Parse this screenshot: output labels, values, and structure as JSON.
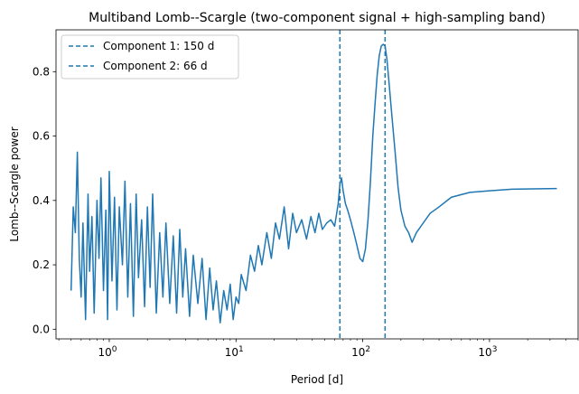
{
  "chart_data": {
    "type": "line",
    "title": "Multiband Lomb--Scargle (two-component signal + high-sampling band)",
    "xlabel": "Period [d]",
    "ylabel": "Lomb--Scargle power",
    "x_scale": "log",
    "xlim": [
      0.38,
      5000
    ],
    "ylim": [
      -0.03,
      0.93
    ],
    "x_ticks": [
      {
        "value": 1,
        "base": "10",
        "exp": "0"
      },
      {
        "value": 10,
        "base": "10",
        "exp": "1"
      },
      {
        "value": 100,
        "base": "10",
        "exp": "2"
      },
      {
        "value": 1000,
        "base": "10",
        "exp": "3"
      }
    ],
    "y_ticks": [
      "0.0",
      "0.2",
      "0.4",
      "0.6",
      "0.8"
    ],
    "y_tick_values": [
      0.0,
      0.2,
      0.4,
      0.6,
      0.8
    ],
    "grid": false,
    "legend_position": "top-left",
    "series": [
      {
        "color": "#1f77b4",
        "x": [
          0.5,
          0.52,
          0.54,
          0.56,
          0.58,
          0.6,
          0.62,
          0.65,
          0.68,
          0.7,
          0.73,
          0.76,
          0.8,
          0.83,
          0.86,
          0.9,
          0.94,
          0.97,
          1.0,
          1.05,
          1.1,
          1.15,
          1.2,
          1.27,
          1.33,
          1.4,
          1.47,
          1.55,
          1.63,
          1.7,
          1.8,
          1.9,
          2.0,
          2.1,
          2.2,
          2.35,
          2.5,
          2.65,
          2.8,
          3.0,
          3.2,
          3.4,
          3.6,
          3.8,
          4.0,
          4.3,
          4.6,
          5.0,
          5.4,
          5.8,
          6.2,
          6.6,
          7.0,
          7.5,
          8.0,
          8.5,
          9.0,
          9.5,
          10.0,
          10.5,
          11.0,
          12.0,
          13.0,
          14.0,
          15.0,
          16.0,
          17.5,
          19.0,
          20.5,
          22.0,
          24.0,
          26.0,
          28.0,
          30.0,
          33.0,
          36.0,
          39.0,
          42.0,
          45.0,
          48.0,
          52.0,
          56.0,
          60.0,
          64.0,
          66.0,
          68.0,
          70.0,
          73.0,
          76.0,
          80.0,
          85.0,
          90.0,
          95.0,
          100.0,
          105.0,
          110.0,
          115.0,
          120.0,
          125.0,
          130.0,
          135.0,
          140.0,
          145.0,
          150.0,
          155.0,
          160.0,
          170.0,
          180.0,
          190.0,
          200.0,
          215.0,
          230.0,
          245.0,
          265.0,
          300.0,
          340.0,
          400.0,
          500.0,
          700.0,
          1000.0,
          1500.0,
          2200.0,
          3400.0
        ],
        "y": [
          0.12,
          0.38,
          0.3,
          0.55,
          0.22,
          0.1,
          0.33,
          0.03,
          0.42,
          0.18,
          0.35,
          0.05,
          0.4,
          0.22,
          0.47,
          0.12,
          0.37,
          0.03,
          0.49,
          0.15,
          0.41,
          0.06,
          0.38,
          0.2,
          0.46,
          0.1,
          0.39,
          0.04,
          0.42,
          0.16,
          0.34,
          0.07,
          0.38,
          0.13,
          0.42,
          0.05,
          0.3,
          0.1,
          0.33,
          0.08,
          0.29,
          0.05,
          0.31,
          0.1,
          0.25,
          0.04,
          0.23,
          0.08,
          0.22,
          0.03,
          0.19,
          0.06,
          0.15,
          0.02,
          0.12,
          0.06,
          0.14,
          0.03,
          0.1,
          0.08,
          0.17,
          0.12,
          0.23,
          0.18,
          0.26,
          0.2,
          0.3,
          0.22,
          0.33,
          0.28,
          0.38,
          0.25,
          0.36,
          0.3,
          0.34,
          0.28,
          0.35,
          0.3,
          0.36,
          0.31,
          0.33,
          0.34,
          0.32,
          0.39,
          0.45,
          0.47,
          0.43,
          0.39,
          0.37,
          0.34,
          0.3,
          0.26,
          0.22,
          0.21,
          0.25,
          0.34,
          0.46,
          0.6,
          0.7,
          0.79,
          0.85,
          0.88,
          0.885,
          0.88,
          0.84,
          0.78,
          0.66,
          0.55,
          0.44,
          0.37,
          0.32,
          0.3,
          0.27,
          0.3,
          0.33,
          0.36,
          0.38,
          0.41,
          0.425,
          0.43,
          0.435,
          0.436,
          0.437
        ]
      }
    ],
    "vlines": [
      {
        "label": "Component 1: 150 d",
        "x": 150,
        "color": "#1f77b4"
      },
      {
        "label": "Component 2: 66 d",
        "x": 66,
        "color": "#1f77b4"
      }
    ]
  }
}
